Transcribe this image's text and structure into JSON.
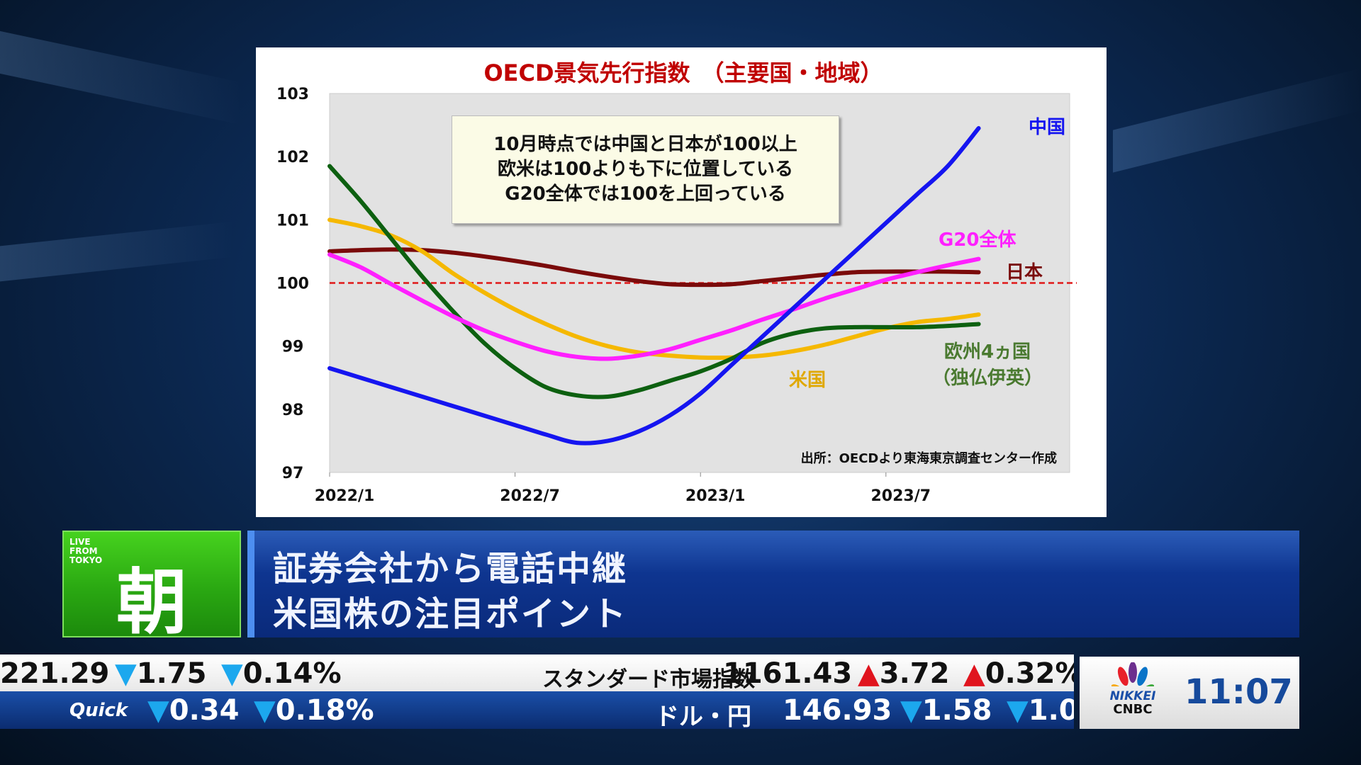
{
  "chart_data": {
    "type": "line",
    "title": "OECD景気先行指数　（主要国・地域）",
    "xlabel": "",
    "ylabel": "",
    "ylim": [
      97,
      103
    ],
    "yticks": [
      "103",
      "102",
      "101",
      "100",
      "99",
      "98",
      "97"
    ],
    "xtick_labels": [
      "2022/1",
      "2022/7",
      "2023/1",
      "2023/7"
    ],
    "x": [
      "2022/1",
      "2022/2",
      "2022/3",
      "2022/4",
      "2022/5",
      "2022/6",
      "2022/7",
      "2022/8",
      "2022/9",
      "2022/10",
      "2022/11",
      "2022/12",
      "2023/1",
      "2023/2",
      "2023/3",
      "2023/4",
      "2023/5",
      "2023/6",
      "2023/7",
      "2023/8",
      "2023/9",
      "2023/10"
    ],
    "reference_line": 100,
    "series": [
      {
        "name": "中国",
        "color": "#1515f0",
        "values": [
          98.65,
          98.5,
          98.35,
          98.2,
          98.05,
          97.9,
          97.75,
          97.6,
          97.47,
          97.5,
          97.65,
          97.9,
          98.25,
          98.7,
          99.15,
          99.6,
          100.05,
          100.5,
          100.95,
          101.4,
          101.85,
          102.45
        ]
      },
      {
        "name": "G20全体",
        "color": "#ff20ff",
        "values": [
          100.45,
          100.25,
          99.98,
          99.72,
          99.47,
          99.25,
          99.07,
          98.92,
          98.83,
          98.8,
          98.85,
          98.95,
          99.1,
          99.25,
          99.42,
          99.58,
          99.75,
          99.9,
          100.05,
          100.17,
          100.28,
          100.38
        ]
      },
      {
        "name": "日本",
        "color": "#7a0a0a",
        "values": [
          100.5,
          100.52,
          100.53,
          100.52,
          100.48,
          100.42,
          100.35,
          100.27,
          100.18,
          100.1,
          100.03,
          99.98,
          99.97,
          99.98,
          100.03,
          100.08,
          100.13,
          100.17,
          100.18,
          100.18,
          100.18,
          100.17
        ]
      },
      {
        "name": "米国",
        "color": "#f5b800",
        "values": [
          101.0,
          100.9,
          100.75,
          100.5,
          100.15,
          99.85,
          99.58,
          99.35,
          99.15,
          99.0,
          98.9,
          98.85,
          98.82,
          98.82,
          98.85,
          98.92,
          99.02,
          99.15,
          99.28,
          99.38,
          99.43,
          99.5
        ]
      },
      {
        "name": "欧州4ヵ国",
        "name2": "（独仏伊英）",
        "color": "#0d6010",
        "label_color": "#4a7a30",
        "values": [
          101.85,
          101.3,
          100.7,
          100.1,
          99.55,
          99.05,
          98.65,
          98.35,
          98.22,
          98.2,
          98.3,
          98.45,
          98.6,
          98.8,
          99.05,
          99.2,
          99.28,
          99.3,
          99.3,
          99.3,
          99.32,
          99.35
        ]
      }
    ],
    "annotation": [
      "10月時点では中国と日本が100以上",
      "欧米は100よりも下に位置している",
      "G20全体では100を上回っている"
    ],
    "source": "出所：OECDより東海東京調査センター作成"
  },
  "banner": {
    "live": [
      "LIVE",
      "FROM",
      "TOKYO"
    ],
    "program": "朝",
    "headline": [
      "証券会社から電話中継",
      "米国株の注目ポイント"
    ]
  },
  "ticker": {
    "row1": {
      "value": "221.29",
      "change": "1.75",
      "pct": "0.14%",
      "name2": "スタンダード市場指数",
      "value2": "1161.43",
      "change2": "3.72",
      "pct2": "0.32%"
    },
    "row2": {
      "name": "Quick",
      "change": "0.34",
      "pct": "0.18%",
      "name2": "ドル・円",
      "value2": "146.93",
      "change2": "1.58",
      "pct2": "1.0"
    },
    "up": "▲",
    "down": "▼"
  },
  "clock": {
    "logo_top": "NIKKEI",
    "logo_bottom": "CNBC",
    "time": "11:07"
  }
}
